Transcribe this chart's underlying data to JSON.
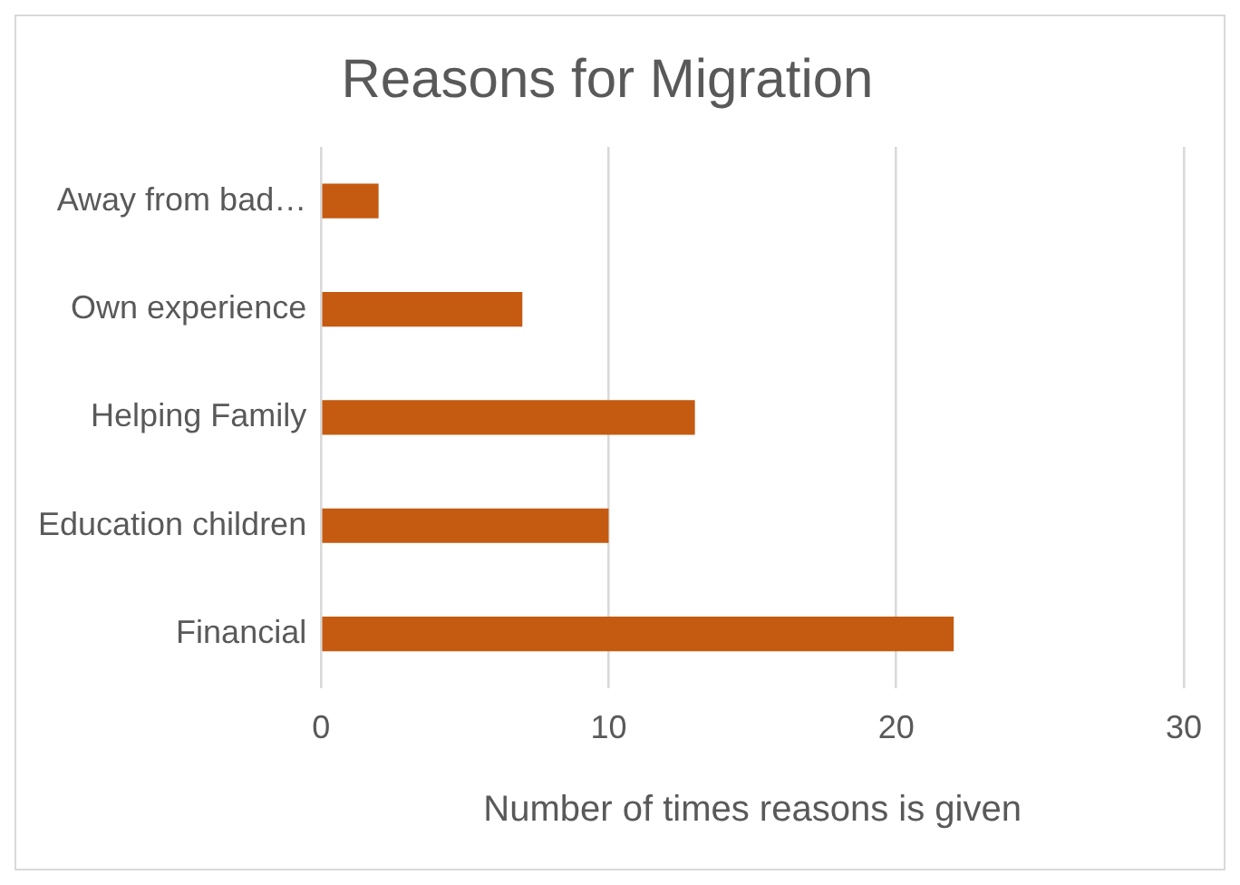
{
  "chart_data": {
    "type": "bar",
    "orientation": "horizontal",
    "title": "Reasons for Migration",
    "xlabel": "Number of times reasons is given",
    "categories": [
      "Away from bad…",
      "Own experience",
      "Helping Family",
      "Education children",
      "Financial"
    ],
    "values": [
      2,
      7,
      13,
      10,
      22
    ],
    "color": "#c55a11",
    "xlim": [
      0,
      30
    ],
    "xticks": [
      0,
      10,
      20,
      30
    ],
    "grid": "x",
    "legend": false
  }
}
